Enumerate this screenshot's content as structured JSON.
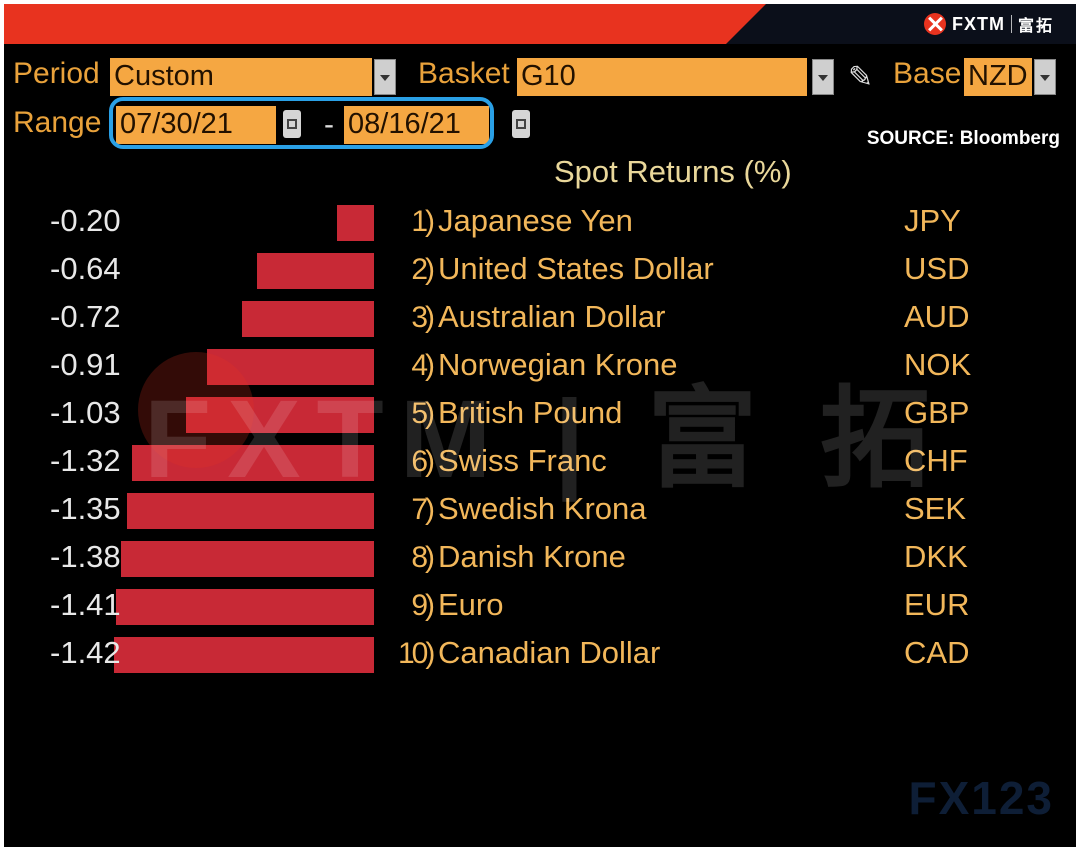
{
  "brand": {
    "name": "FXTM",
    "cn": "富拓"
  },
  "controls": {
    "period_label": "Period",
    "period_value": "Custom",
    "basket_label": "Basket",
    "basket_value": "G10",
    "base_label": "Base",
    "base_value": "NZD",
    "range_label": "Range",
    "range_start": "07/30/21",
    "range_separator": "-",
    "range_end": "08/16/21"
  },
  "source": "SOURCE: Bloomberg",
  "table_title": "Spot Returns (%)",
  "rows": [
    {
      "value": "-0.20",
      "num": "1)",
      "name": "Japanese Yen",
      "code": "JPY"
    },
    {
      "value": "-0.64",
      "num": "2)",
      "name": "United States Dollar",
      "code": "USD"
    },
    {
      "value": "-0.72",
      "num": "3)",
      "name": "Australian Dollar",
      "code": "AUD"
    },
    {
      "value": "-0.91",
      "num": "4)",
      "name": "Norwegian Krone",
      "code": "NOK"
    },
    {
      "value": "-1.03",
      "num": "5)",
      "name": "British Pound",
      "code": "GBP"
    },
    {
      "value": "-1.32",
      "num": "6)",
      "name": "Swiss Franc",
      "code": "CHF"
    },
    {
      "value": "-1.35",
      "num": "7)",
      "name": "Swedish Krona",
      "code": "SEK"
    },
    {
      "value": "-1.38",
      "num": "8)",
      "name": "Danish Krone",
      "code": "DKK"
    },
    {
      "value": "-1.41",
      "num": "9)",
      "name": "Euro",
      "code": "EUR"
    },
    {
      "value": "-1.42",
      "num": "10)",
      "name": "Canadian Dollar",
      "code": "CAD"
    }
  ],
  "chart_data": {
    "type": "bar",
    "categories": [
      "JPY",
      "USD",
      "AUD",
      "NOK",
      "GBP",
      "CHF",
      "SEK",
      "DKK",
      "EUR",
      "CAD"
    ],
    "values": [
      -0.2,
      -0.64,
      -0.72,
      -0.91,
      -1.03,
      -1.32,
      -1.35,
      -1.38,
      -1.41,
      -1.42
    ],
    "title": "Spot Returns (%)",
    "orientation": "horizontal",
    "bar_color": "#c82936"
  },
  "watermark": {
    "text": "FXTM | 富 拓",
    "corner": "FX123"
  },
  "colors": {
    "accent_bar": "#e8331f",
    "field": "#f5a742",
    "label": "#e9a23b",
    "highlight": "#2aa0e6"
  }
}
